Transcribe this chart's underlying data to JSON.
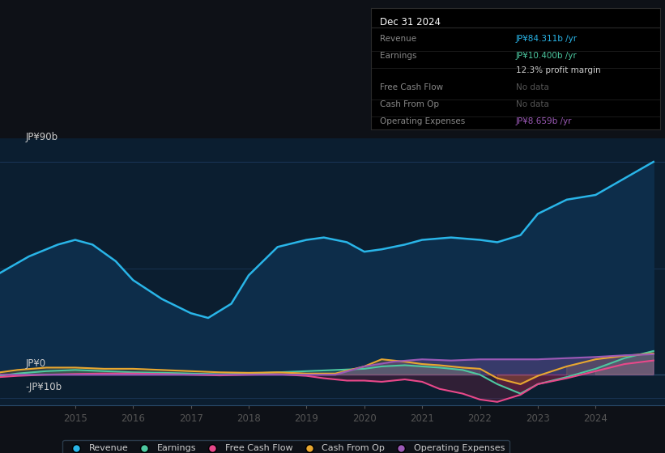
{
  "bg_color": "#0e1117",
  "plot_bg_color": "#0b1e30",
  "ylim": [
    -13,
    100
  ],
  "xlim": [
    2013.7,
    2025.2
  ],
  "xticks": [
    2015,
    2016,
    2017,
    2018,
    2019,
    2020,
    2021,
    2022,
    2023,
    2024
  ],
  "grid_color": "#1e3a5f",
  "zero_line_color": "#2a4a6a",
  "legend_items": [
    "Revenue",
    "Earnings",
    "Free Cash Flow",
    "Cash From Op",
    "Operating Expenses"
  ],
  "legend_colors": [
    "#29b5e8",
    "#4dc8a0",
    "#e8488a",
    "#e8a730",
    "#9b59b6"
  ],
  "revenue": {
    "x": [
      2013.7,
      2014.2,
      2014.7,
      2015.0,
      2015.3,
      2015.7,
      2016.0,
      2016.5,
      2017.0,
      2017.3,
      2017.7,
      2018.0,
      2018.5,
      2019.0,
      2019.3,
      2019.7,
      2020.0,
      2020.3,
      2020.7,
      2021.0,
      2021.5,
      2022.0,
      2022.3,
      2022.7,
      2023.0,
      2023.5,
      2024.0,
      2024.5,
      2025.0
    ],
    "y": [
      43,
      50,
      55,
      57,
      55,
      48,
      40,
      32,
      26,
      24,
      30,
      42,
      54,
      57,
      58,
      56,
      52,
      53,
      55,
      57,
      58,
      57,
      56,
      59,
      68,
      74,
      76,
      83,
      90
    ],
    "color": "#29b5e8",
    "fill_color": "#0d2d4a",
    "linewidth": 1.8
  },
  "earnings": {
    "x": [
      2013.7,
      2014.0,
      2014.5,
      2015.0,
      2015.5,
      2016.0,
      2016.5,
      2017.0,
      2017.5,
      2018.0,
      2018.5,
      2019.0,
      2019.5,
      2020.0,
      2020.3,
      2020.7,
      2021.0,
      2021.3,
      2021.7,
      2022.0,
      2022.3,
      2022.7,
      2023.0,
      2023.5,
      2024.0,
      2024.5,
      2025.0
    ],
    "y": [
      -0.5,
      0.5,
      1.5,
      2.0,
      1.5,
      1.0,
      0.8,
      0.5,
      0.2,
      0.5,
      1.0,
      1.5,
      2.0,
      2.5,
      3.5,
      4.0,
      3.5,
      3.0,
      2.0,
      0.0,
      -4.0,
      -8.0,
      -4.0,
      -1.0,
      2.5,
      7.0,
      10.0
    ],
    "color": "#4dc8a0",
    "linewidth": 1.5
  },
  "free_cash_flow": {
    "x": [
      2013.7,
      2014.0,
      2014.5,
      2015.0,
      2015.5,
      2016.0,
      2016.5,
      2017.0,
      2017.5,
      2018.0,
      2018.5,
      2019.0,
      2019.3,
      2019.7,
      2020.0,
      2020.3,
      2020.7,
      2021.0,
      2021.3,
      2021.7,
      2022.0,
      2022.3,
      2022.7,
      2023.0,
      2023.5,
      2024.0,
      2024.5,
      2025.0
    ],
    "y": [
      -1.0,
      -0.5,
      0.0,
      0.3,
      0.5,
      0.5,
      0.3,
      0.0,
      -0.3,
      0.0,
      0.2,
      -0.5,
      -1.5,
      -2.5,
      -2.5,
      -3.0,
      -2.0,
      -3.0,
      -6.0,
      -8.0,
      -10.5,
      -11.5,
      -8.5,
      -4.0,
      -1.5,
      1.5,
      4.5,
      6.0
    ],
    "color": "#e8488a",
    "linewidth": 1.5
  },
  "cash_from_op": {
    "x": [
      2013.7,
      2014.0,
      2014.5,
      2015.0,
      2015.5,
      2016.0,
      2016.5,
      2017.0,
      2017.5,
      2018.0,
      2018.5,
      2019.0,
      2019.5,
      2020.0,
      2020.3,
      2020.7,
      2021.0,
      2021.3,
      2021.7,
      2022.0,
      2022.3,
      2022.7,
      2023.0,
      2023.5,
      2024.0,
      2024.5,
      2025.0
    ],
    "y": [
      1.0,
      2.0,
      3.0,
      3.0,
      2.5,
      2.5,
      2.0,
      1.5,
      1.0,
      0.8,
      1.0,
      0.5,
      0.5,
      3.5,
      6.5,
      5.5,
      4.5,
      4.0,
      3.0,
      2.5,
      -1.5,
      -4.0,
      -0.5,
      3.5,
      6.5,
      8.0,
      9.0
    ],
    "color": "#e8a730",
    "linewidth": 1.5
  },
  "op_expenses": {
    "x": [
      2013.7,
      2014.5,
      2015.0,
      2016.0,
      2017.0,
      2018.0,
      2019.0,
      2019.5,
      2020.0,
      2020.5,
      2021.0,
      2021.5,
      2022.0,
      2022.5,
      2023.0,
      2023.5,
      2024.0,
      2024.5,
      2025.0
    ],
    "y": [
      0.0,
      0.0,
      0.0,
      0.0,
      0.0,
      0.0,
      0.0,
      0.0,
      3.5,
      5.5,
      6.5,
      6.0,
      6.5,
      6.5,
      6.5,
      7.0,
      7.5,
      8.2,
      8.659
    ],
    "color": "#9b59b6",
    "linewidth": 1.5
  },
  "info_box": {
    "title": "Dec 31 2024",
    "rows": [
      {
        "label": "Revenue",
        "value": "JP¥84.311b /yr",
        "value_color": "#29b5e8"
      },
      {
        "label": "Earnings",
        "value": "JP¥10.400b /yr",
        "value_color": "#4dc8a0"
      },
      {
        "label": "",
        "value": "12.3% profit margin",
        "value_color": "#cccccc"
      },
      {
        "label": "Free Cash Flow",
        "value": "No data",
        "value_color": "#555555"
      },
      {
        "label": "Cash From Op",
        "value": "No data",
        "value_color": "#555555"
      },
      {
        "label": "Operating Expenses",
        "value": "JP¥8.659b /yr",
        "value_color": "#9b59b6"
      }
    ]
  },
  "ylabel_top": "JP¥90b",
  "ylabel_zero": "JP¥0",
  "ylabel_neg": "-JP¥10b"
}
